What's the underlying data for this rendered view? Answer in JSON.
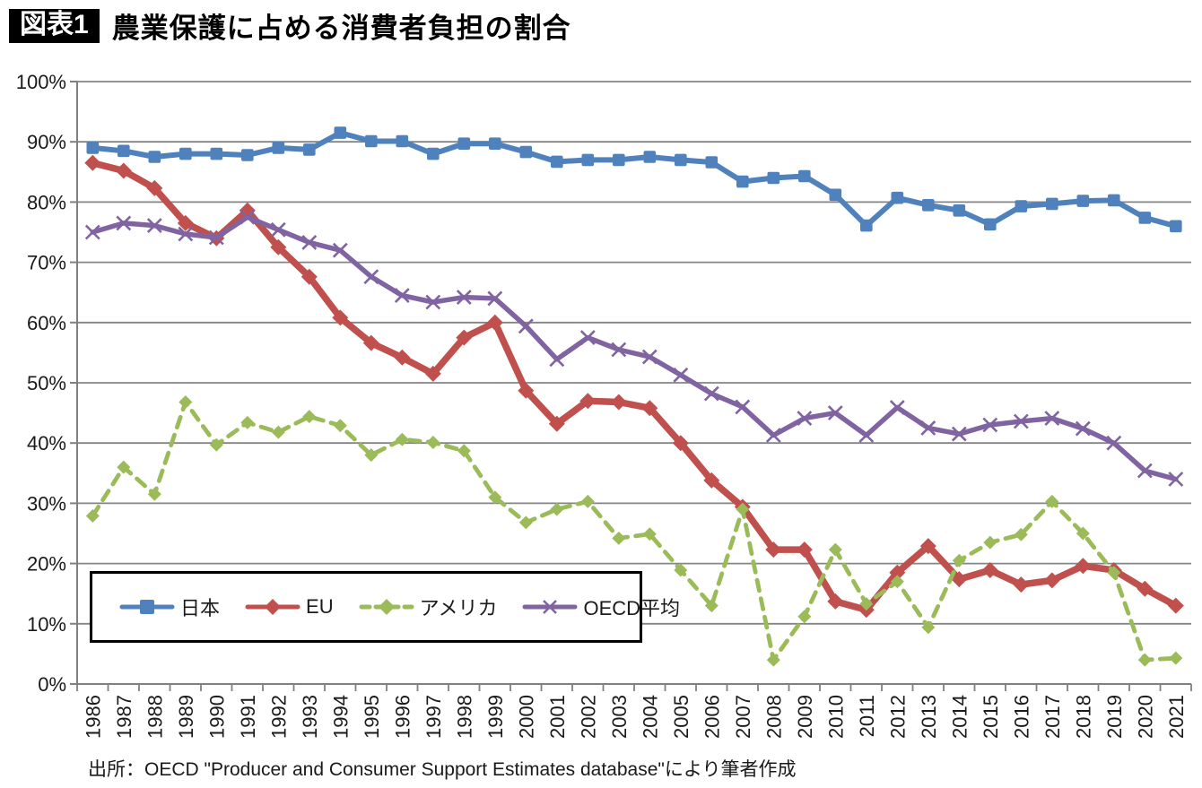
{
  "title": {
    "badge": "図表1",
    "text": "農業保護に占める消費者負担の割合"
  },
  "source": "出所：OECD \"Producer and Consumer Support Estimates database\"により筆者作成",
  "colors": {
    "japan": "#4F81BD",
    "eu": "#C0504D",
    "usa": "#9BBB59",
    "oecd": "#8064A2",
    "gridline": "#848484",
    "axis": "#808080",
    "tick_text": "#1a1a1a",
    "badge_bg": "#000000",
    "badge_fg": "#ffffff"
  },
  "chart_data": {
    "type": "line",
    "title": "農業保護に占める消費者負担の割合",
    "x": [
      1986,
      1987,
      1988,
      1989,
      1990,
      1991,
      1992,
      1993,
      1994,
      1995,
      1996,
      1997,
      1998,
      1999,
      2000,
      2001,
      2002,
      2003,
      2004,
      2005,
      2006,
      2007,
      2008,
      2009,
      2010,
      2011,
      2012,
      2013,
      2014,
      2015,
      2016,
      2017,
      2018,
      2019,
      2020,
      2021
    ],
    "ylim": [
      0,
      100
    ],
    "yticks": [
      "0%",
      "10%",
      "20%",
      "30%",
      "40%",
      "50%",
      "60%",
      "70%",
      "80%",
      "90%",
      "100%"
    ],
    "grid": true,
    "legend_position": "inside-bottom-left",
    "series": [
      {
        "name": "日本",
        "color": "#4F81BD",
        "marker": "square",
        "dash": "solid",
        "values": [
          89,
          88.5,
          87.5,
          88,
          88,
          87.8,
          89,
          88.7,
          91.5,
          90.1,
          90.1,
          88,
          89.7,
          89.7,
          88.3,
          86.7,
          87,
          87,
          87.5,
          87,
          86.6,
          83.4,
          84,
          84.3,
          81.2,
          76.1,
          80.7,
          79.5,
          78.6,
          76.3,
          79.3,
          79.7,
          80.2,
          80.3,
          77.4,
          76
        ]
      },
      {
        "name": "EU",
        "color": "#C0504D",
        "marker": "diamond",
        "dash": "solid",
        "values": [
          86.5,
          85.2,
          82.3,
          76.5,
          74,
          78.6,
          72.5,
          67.6,
          60.8,
          56.6,
          54.2,
          51.5,
          57.5,
          60,
          48.7,
          43.2,
          47,
          46.8,
          45.8,
          40,
          33.8,
          29.4,
          22.3,
          22.3,
          13.7,
          12.3,
          18.5,
          22.9,
          17.4,
          18.9,
          16.5,
          17.2,
          19.6,
          18.9,
          15.8,
          13
        ]
      },
      {
        "name": "アメリカ",
        "color": "#9BBB59",
        "marker": "diamond",
        "dash": "dashed",
        "values": [
          27.9,
          36,
          31.5,
          46.8,
          39.7,
          43.4,
          41.8,
          44.4,
          42.9,
          38,
          40.6,
          40.1,
          38.7,
          31,
          26.8,
          29,
          30.3,
          24.2,
          24.9,
          18.9,
          13,
          29,
          4,
          11.2,
          22.3,
          13.3,
          17,
          9.4,
          20.5,
          23.5,
          24.8,
          30.3,
          25,
          18.5,
          4,
          4.3
        ]
      },
      {
        "name": "OECD平均",
        "color": "#8064A2",
        "marker": "x",
        "dash": "solid",
        "values": [
          75,
          76.5,
          76.1,
          74.7,
          74.1,
          77.5,
          75.4,
          73.3,
          72,
          67.6,
          64.5,
          63.4,
          64.2,
          64,
          59.4,
          53.9,
          57.5,
          55.5,
          54.3,
          51.3,
          48.2,
          46,
          41.3,
          44.1,
          45,
          41.3,
          45.9,
          42.5,
          41.5,
          43,
          43.6,
          44.1,
          42.4,
          40,
          35.4,
          34
        ]
      }
    ]
  }
}
